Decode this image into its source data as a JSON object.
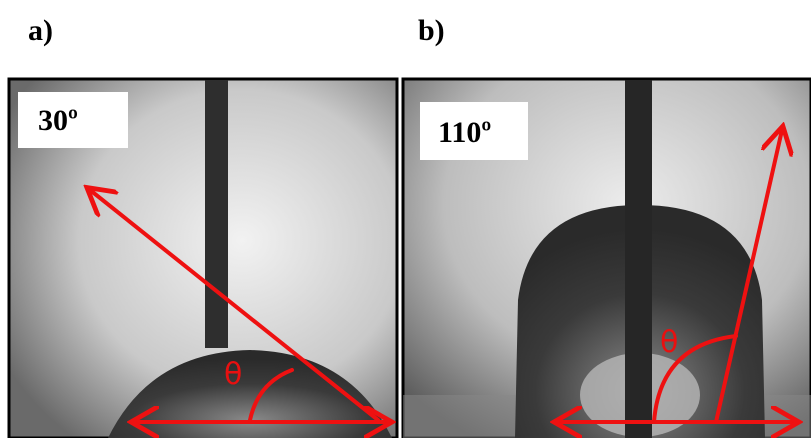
{
  "panels": [
    {
      "label": "a)",
      "angle_label": "30º",
      "theta": "θ"
    },
    {
      "label": "b)",
      "angle_label": "110º",
      "theta": "θ"
    }
  ]
}
